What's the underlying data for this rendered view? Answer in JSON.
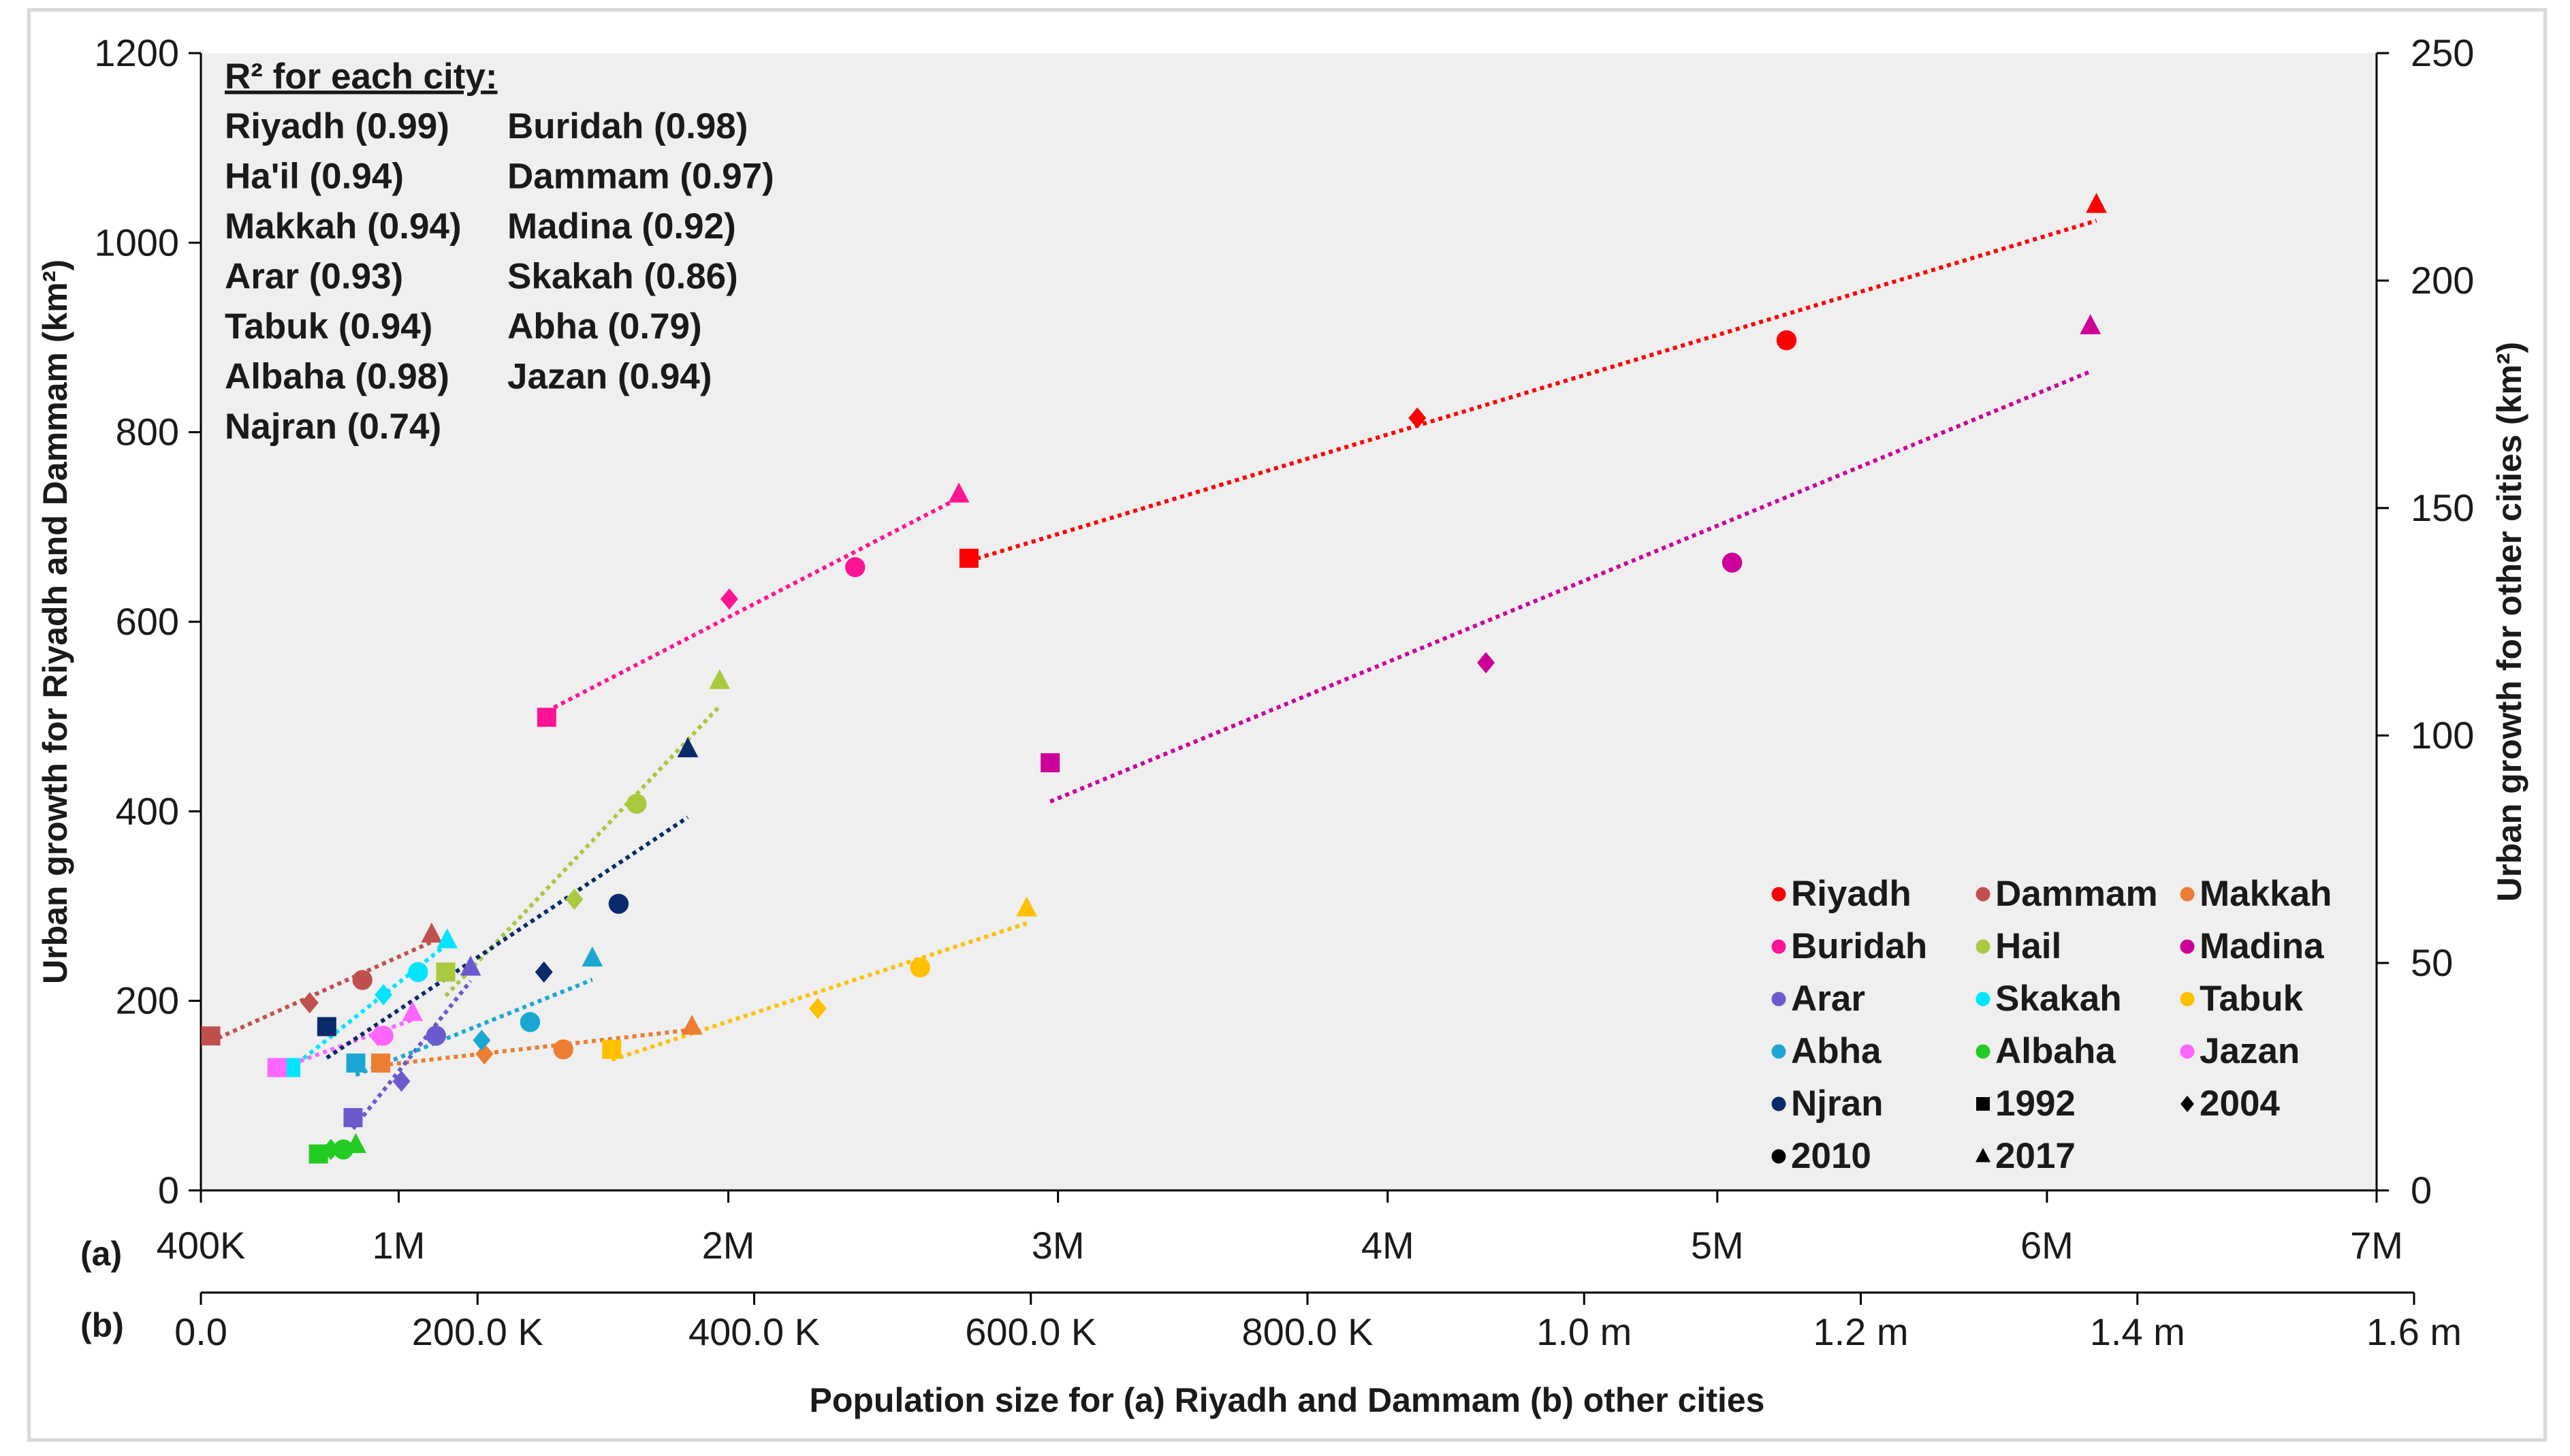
{
  "chart_data": {
    "type": "scatter",
    "title": "",
    "ylabel_left": "Urban growth for Riyadh and Dammam (km²)",
    "ylabel_right": "Urban growth for other cities (km²)",
    "xlabel": "Population size for (a) Riyadh and Dammam (b) other cities",
    "y_left": {
      "range": [
        0,
        1200
      ],
      "ticks": [
        "0",
        "200",
        "400",
        "600",
        "800",
        "1000",
        "1200"
      ]
    },
    "y_right": {
      "range": [
        0,
        250
      ],
      "ticks": [
        "0",
        "50",
        "100",
        "150",
        "200",
        "250"
      ]
    },
    "x_a": {
      "marker": "(a)",
      "range": [
        400000,
        7000000
      ],
      "ticks": [
        "400K",
        "1M",
        "2M",
        "3M",
        "4M",
        "5M",
        "6M",
        "7M"
      ],
      "tick_values": [
        400000,
        1000000,
        2000000,
        3000000,
        4000000,
        5000000,
        6000000,
        7000000
      ]
    },
    "x_b": {
      "marker": "(b)",
      "range": [
        0,
        1600000
      ],
      "ticks": [
        "0.0",
        "200.0 K",
        "400.0 K",
        "600.0 K",
        "800.0 K",
        "1.0 m",
        "1.2 m",
        "1.4 m",
        "1.6 m"
      ],
      "tick_values": [
        0,
        200000,
        400000,
        600000,
        800000,
        1000000,
        1200000,
        1400000,
        1600000
      ]
    },
    "r2_heading": "R² for each city:",
    "r2_entries": [
      "Riyadh (0.99)",
      "Buridah (0.98)",
      "Ha'il (0.94)",
      "Dammam (0.97)",
      "Makkah (0.94)",
      "Madina (0.92)",
      "Arar (0.93)",
      "Skakah (0.86)",
      "Tabuk (0.94)",
      "Abha (0.79)",
      "Albaha (0.98)",
      "Jazan (0.94)",
      "Najran (0.74)"
    ],
    "years": [
      {
        "label": "1992",
        "marker": "square"
      },
      {
        "label": "2004",
        "marker": "diamond"
      },
      {
        "label": "2010",
        "marker": "circle"
      },
      {
        "label": "2017",
        "marker": "triangle"
      }
    ],
    "series": [
      {
        "name": "Riyadh",
        "legend": "Riyadh",
        "color": "#ff0000",
        "axis": "a",
        "points": [
          [
            2730000,
            667
          ],
          [
            4090000,
            815
          ],
          [
            5210000,
            897
          ],
          [
            6150000,
            1040
          ]
        ]
      },
      {
        "name": "Dammam",
        "legend": "Dammam",
        "color": "#c0504d",
        "axis": "a",
        "trend_color": "#c0504d",
        "points": [
          [
            430000,
            163
          ],
          [
            730000,
            198
          ],
          [
            890000,
            222
          ],
          [
            1100000,
            270
          ]
        ]
      },
      {
        "name": "Makkah",
        "legend": "Makkah",
        "color": "#ed7d31",
        "axis": "b",
        "points": [
          [
            130000,
            28
          ],
          [
            205000,
            30
          ],
          [
            262000,
            31
          ],
          [
            355000,
            36
          ]
        ]
      },
      {
        "name": "Buridah",
        "legend": "Buridah",
        "color": "#ff1493",
        "axis": "b",
        "points": [
          [
            250000,
            104
          ],
          [
            382000,
            130
          ],
          [
            473000,
            137
          ],
          [
            548000,
            153
          ]
        ]
      },
      {
        "name": "Hail",
        "legend": "Hail",
        "color": "#a9c93e",
        "axis": "b",
        "points": [
          [
            177000,
            48
          ],
          [
            270000,
            64
          ],
          [
            315000,
            85
          ],
          [
            375000,
            112
          ]
        ]
      },
      {
        "name": "Madina",
        "legend": "Madina",
        "color": "#cc0099",
        "axis": "b",
        "points": [
          [
            614000,
            94
          ],
          [
            929000,
            116
          ],
          [
            1107000,
            138
          ],
          [
            1366000,
            190
          ]
        ]
      },
      {
        "name": "Arar",
        "legend": "Arar",
        "color": "#6a5acd",
        "axis": "b",
        "points": [
          [
            110000,
            16
          ],
          [
            145000,
            24
          ],
          [
            170000,
            34
          ],
          [
            195000,
            49
          ]
        ]
      },
      {
        "name": "Skakah",
        "legend": "Skakah",
        "color": "#00e5ff",
        "axis": "b",
        "points": [
          [
            65000,
            27
          ],
          [
            132000,
            43
          ],
          [
            157000,
            48
          ],
          [
            178000,
            55
          ]
        ]
      },
      {
        "name": "Tabuk",
        "legend": "Tabuk",
        "color": "#ffc000",
        "axis": "b",
        "points": [
          [
            297000,
            31
          ],
          [
            446000,
            40
          ],
          [
            520000,
            49
          ],
          [
            597000,
            62
          ]
        ]
      },
      {
        "name": "Abha",
        "legend": "Abha",
        "color": "#1aa7d4",
        "axis": "b",
        "points": [
          [
            112000,
            28
          ],
          [
            203000,
            33
          ],
          [
            238000,
            37
          ],
          [
            283000,
            51
          ]
        ]
      },
      {
        "name": "Albaha",
        "legend": "Albaha",
        "color": "#22cc22",
        "axis": "b",
        "points": [
          [
            85000,
            8
          ],
          [
            94000,
            9
          ],
          [
            103000,
            9
          ],
          [
            112000,
            10
          ]
        ]
      },
      {
        "name": "Jazan",
        "legend": "Jazan",
        "color": "#ff66ff",
        "axis": "b",
        "points": [
          [
            55000,
            27
          ],
          [
            128000,
            34
          ],
          [
            132000,
            34
          ],
          [
            153000,
            39
          ]
        ]
      },
      {
        "name": "Njran",
        "legend": "Njran",
        "color": "#0b2a6b",
        "axis": "b",
        "points": [
          [
            91000,
            36
          ],
          [
            248000,
            48
          ],
          [
            302000,
            63
          ],
          [
            352000,
            97
          ]
        ]
      }
    ]
  }
}
